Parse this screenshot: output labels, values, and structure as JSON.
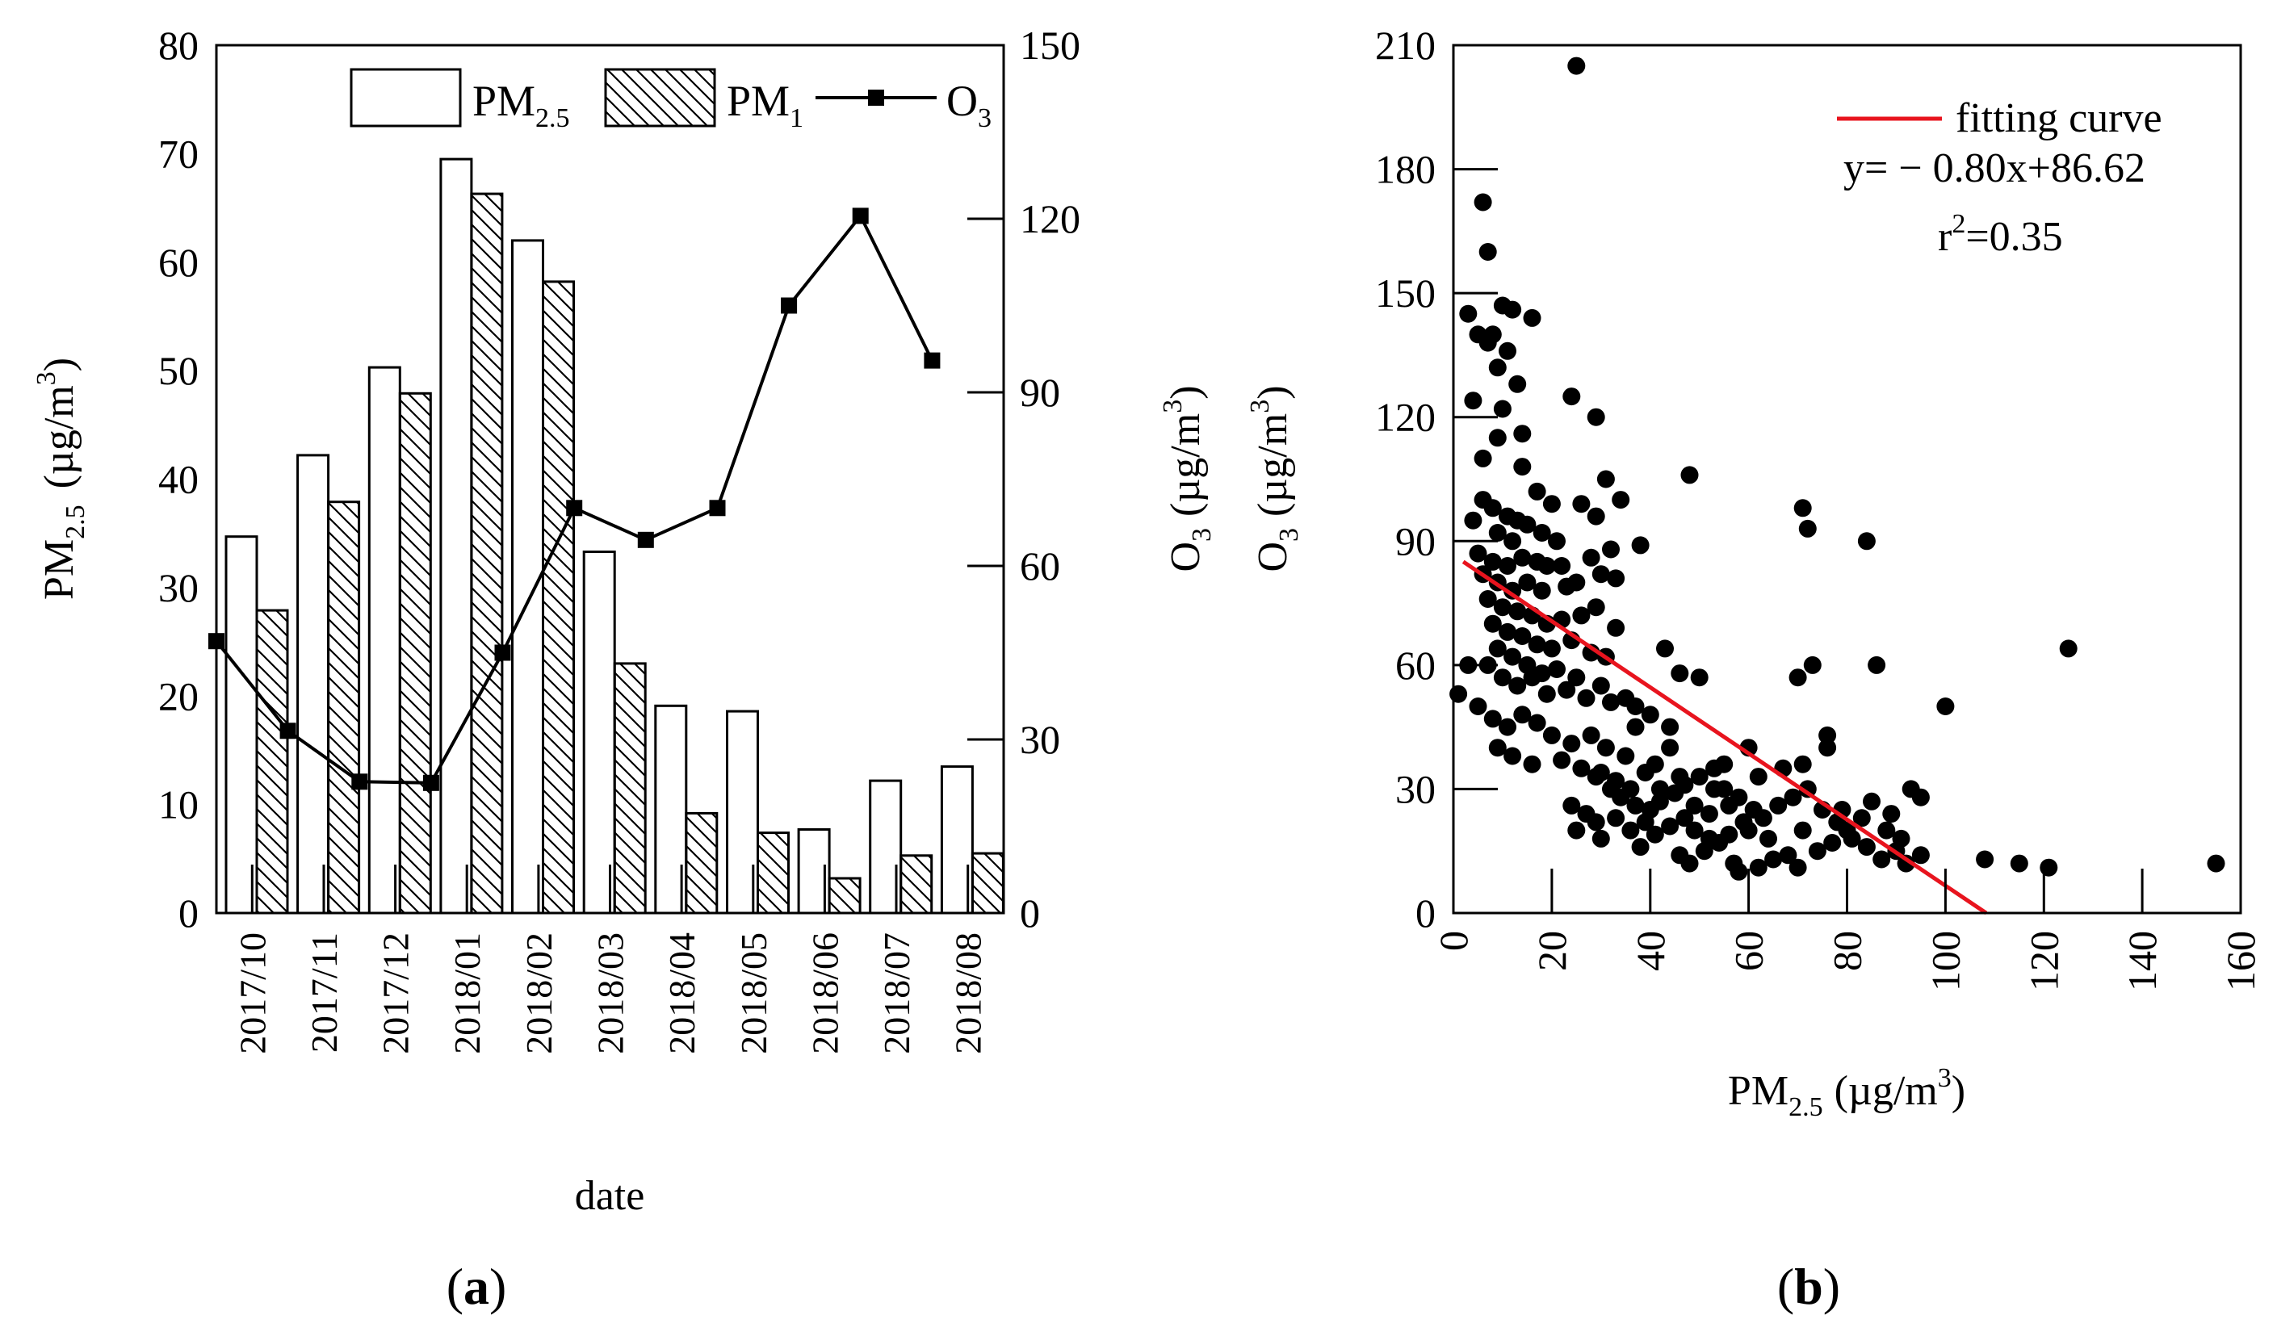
{
  "chart_data": [
    {
      "type": "bar",
      "panel_label": "(a)",
      "panel_letter": "a",
      "xlabel": "date",
      "ylabel": "PM",
      "ylabel_sub": "2.5",
      "ylabel_unit": "(µg/m",
      "ylabel_sup": "3",
      "ylabel_close": ")",
      "y2label": "O",
      "y2label_sub": "3",
      "y2label_unit": "(µg/m",
      "y2label_sup": "3",
      "y2label_close": ")",
      "ylim": [
        0,
        80
      ],
      "y2lim": [
        0,
        150
      ],
      "yticks": [
        "0",
        "10",
        "20",
        "30",
        "40",
        "50",
        "60",
        "70",
        "80"
      ],
      "y2ticks": [
        "0",
        "30",
        "60",
        "90",
        "120",
        "150"
      ],
      "categories": [
        "2017/10",
        "2017/11",
        "2017/12",
        "2018/01",
        "2018/02",
        "2018/03",
        "2018/04",
        "2018/05",
        "2018/06",
        "2018/07",
        "2018/08"
      ],
      "series": [
        {
          "name": "PM2.5",
          "kind": "bar",
          "fill": "white",
          "values": [
            34.7,
            42.2,
            50.3,
            69.5,
            62.0,
            33.3,
            19.1,
            18.6,
            7.7,
            12.2,
            13.5
          ]
        },
        {
          "name": "PM1",
          "kind": "bar",
          "fill": "hatched",
          "values": [
            27.9,
            37.9,
            47.9,
            66.3,
            58.2,
            23.0,
            9.2,
            7.4,
            3.2,
            5.3,
            5.5
          ]
        },
        {
          "name": "O3",
          "kind": "line",
          "axis": "right",
          "values": [
            47.0,
            31.5,
            22.7,
            22.5,
            45.0,
            70.0,
            64.5,
            70.0,
            105.0,
            120.5,
            95.5
          ]
        }
      ],
      "legend": [
        {
          "main": "PM",
          "sub": "2.5"
        },
        {
          "main": "PM",
          "sub": "1"
        },
        {
          "main": "O",
          "sub": "3"
        }
      ]
    },
    {
      "type": "scatter",
      "panel_label": "(b)",
      "panel_letter": "b",
      "xlabel": "PM",
      "xlabel_sub": "2.5",
      "xlabel_unit": "(µg/m",
      "xlabel_sup": "3",
      "xlabel_close": ")",
      "ylabel": "O",
      "ylabel_sub": "3",
      "ylabel_unit": "(µg/m",
      "ylabel_sup": "3",
      "ylabel_close": ")",
      "xlim": [
        0,
        160
      ],
      "ylim": [
        0,
        210
      ],
      "xticks": [
        "0",
        "20",
        "40",
        "60",
        "80",
        "100",
        "120",
        "140",
        "160"
      ],
      "yticks": [
        "0",
        "30",
        "60",
        "90",
        "120",
        "150",
        "180",
        "210"
      ],
      "fit": {
        "slope": -0.8,
        "intercept": 86.62,
        "color": "#e8141e"
      },
      "legend_label": "fitting curve",
      "equation": "y= − 0.80x+86.62",
      "r2_main": "r",
      "r2_sup": "2",
      "r2_value": "=0.35",
      "points": [
        [
          25,
          205
        ],
        [
          6,
          172
        ],
        [
          7,
          160
        ],
        [
          3,
          145
        ],
        [
          8,
          140
        ],
        [
          10,
          147
        ],
        [
          12,
          146
        ],
        [
          16,
          144
        ],
        [
          5,
          140
        ],
        [
          7,
          138
        ],
        [
          9,
          132
        ],
        [
          11,
          136
        ],
        [
          13,
          128
        ],
        [
          4,
          124
        ],
        [
          10,
          122
        ],
        [
          24,
          125
        ],
        [
          29,
          120
        ],
        [
          9,
          115
        ],
        [
          14,
          116
        ],
        [
          6,
          110
        ],
        [
          14,
          108
        ],
        [
          17,
          102
        ],
        [
          20,
          99
        ],
        [
          26,
          99
        ],
        [
          29,
          96
        ],
        [
          31,
          105
        ],
        [
          34,
          100
        ],
        [
          48,
          106
        ],
        [
          71,
          98
        ],
        [
          72,
          93
        ],
        [
          84,
          90
        ],
        [
          6,
          100
        ],
        [
          8,
          98
        ],
        [
          11,
          96
        ],
        [
          13,
          95
        ],
        [
          4,
          95
        ],
        [
          9,
          92
        ],
        [
          15,
          94
        ],
        [
          18,
          92
        ],
        [
          21,
          90
        ],
        [
          12,
          90
        ],
        [
          5,
          87
        ],
        [
          8,
          85
        ],
        [
          11,
          84
        ],
        [
          14,
          86
        ],
        [
          17,
          85
        ],
        [
          19,
          84
        ],
        [
          22,
          84
        ],
        [
          28,
          86
        ],
        [
          32,
          88
        ],
        [
          38,
          89
        ],
        [
          6,
          82
        ],
        [
          9,
          80
        ],
        [
          12,
          78
        ],
        [
          15,
          80
        ],
        [
          18,
          78
        ],
        [
          23,
          79
        ],
        [
          25,
          80
        ],
        [
          30,
          82
        ],
        [
          33,
          81
        ],
        [
          7,
          76
        ],
        [
          10,
          74
        ],
        [
          13,
          73
        ],
        [
          16,
          72
        ],
        [
          19,
          70
        ],
        [
          22,
          71
        ],
        [
          26,
          72
        ],
        [
          29,
          74
        ],
        [
          8,
          70
        ],
        [
          11,
          68
        ],
        [
          14,
          67
        ],
        [
          17,
          65
        ],
        [
          20,
          64
        ],
        [
          24,
          66
        ],
        [
          28,
          63
        ],
        [
          31,
          62
        ],
        [
          33,
          69
        ],
        [
          9,
          64
        ],
        [
          12,
          62
        ],
        [
          15,
          60
        ],
        [
          18,
          58
        ],
        [
          21,
          59
        ],
        [
          25,
          57
        ],
        [
          30,
          55
        ],
        [
          35,
          52
        ],
        [
          3,
          60
        ],
        [
          7,
          60
        ],
        [
          10,
          57
        ],
        [
          13,
          55
        ],
        [
          16,
          57
        ],
        [
          19,
          53
        ],
        [
          23,
          54
        ],
        [
          27,
          52
        ],
        [
          32,
          51
        ],
        [
          37,
          50
        ],
        [
          1,
          53
        ],
        [
          5,
          50
        ],
        [
          8,
          47
        ],
        [
          11,
          45
        ],
        [
          14,
          48
        ],
        [
          17,
          46
        ],
        [
          20,
          43
        ],
        [
          24,
          41
        ],
        [
          28,
          43
        ],
        [
          31,
          40
        ],
        [
          35,
          38
        ],
        [
          9,
          40
        ],
        [
          12,
          38
        ],
        [
          16,
          36
        ],
        [
          22,
          37
        ],
        [
          26,
          35
        ],
        [
          29,
          33
        ],
        [
          33,
          32
        ],
        [
          36,
          30
        ],
        [
          39,
          34
        ],
        [
          41,
          36
        ],
        [
          44,
          40
        ],
        [
          30,
          34
        ],
        [
          32,
          30
        ],
        [
          34,
          28
        ],
        [
          37,
          26
        ],
        [
          40,
          25
        ],
        [
          42,
          27
        ],
        [
          45,
          29
        ],
        [
          47,
          31
        ],
        [
          50,
          33
        ],
        [
          53,
          35
        ],
        [
          55,
          30
        ],
        [
          58,
          28
        ],
        [
          24,
          26
        ],
        [
          27,
          24
        ],
        [
          29,
          22
        ],
        [
          33,
          23
        ],
        [
          36,
          20
        ],
        [
          39,
          22
        ],
        [
          41,
          19
        ],
        [
          44,
          21
        ],
        [
          47,
          23
        ],
        [
          49,
          20
        ],
        [
          52,
          18
        ],
        [
          56,
          19
        ],
        [
          59,
          22
        ],
        [
          61,
          25
        ],
        [
          25,
          20
        ],
        [
          30,
          18
        ],
        [
          38,
          16
        ],
        [
          46,
          14
        ],
        [
          48,
          12
        ],
        [
          51,
          15
        ],
        [
          54,
          17
        ],
        [
          57,
          12
        ],
        [
          58,
          10
        ],
        [
          62,
          11
        ],
        [
          65,
          13
        ],
        [
          68,
          14
        ],
        [
          70,
          11
        ],
        [
          74,
          15
        ],
        [
          77,
          17
        ],
        [
          80,
          20
        ],
        [
          83,
          23
        ],
        [
          60,
          20
        ],
        [
          63,
          23
        ],
        [
          66,
          26
        ],
        [
          69,
          28
        ],
        [
          72,
          30
        ],
        [
          75,
          25
        ],
        [
          78,
          22
        ],
        [
          81,
          18
        ],
        [
          84,
          16
        ],
        [
          87,
          13
        ],
        [
          90,
          15
        ],
        [
          92,
          12
        ],
        [
          95,
          14
        ],
        [
          88,
          20
        ],
        [
          91,
          18
        ],
        [
          93,
          30
        ],
        [
          95,
          28
        ],
        [
          100,
          50
        ],
        [
          108,
          13
        ],
        [
          115,
          12
        ],
        [
          121,
          11
        ],
        [
          125,
          64
        ],
        [
          155,
          12
        ],
        [
          43,
          64
        ],
        [
          46,
          58
        ],
        [
          50,
          57
        ],
        [
          55,
          36
        ],
        [
          60,
          40
        ],
        [
          62,
          33
        ],
        [
          67,
          35
        ],
        [
          71,
          36
        ],
        [
          70,
          57
        ],
        [
          73,
          60
        ],
        [
          76,
          43
        ],
        [
          76,
          40
        ],
        [
          86,
          60
        ],
        [
          44,
          45
        ],
        [
          40,
          48
        ],
        [
          37,
          45
        ],
        [
          53,
          30
        ],
        [
          49,
          26
        ],
        [
          46,
          33
        ],
        [
          42,
          30
        ],
        [
          56,
          26
        ],
        [
          52,
          24
        ],
        [
          64,
          18
        ],
        [
          71,
          20
        ],
        [
          79,
          25
        ],
        [
          85,
          27
        ],
        [
          89,
          24
        ]
      ]
    }
  ]
}
